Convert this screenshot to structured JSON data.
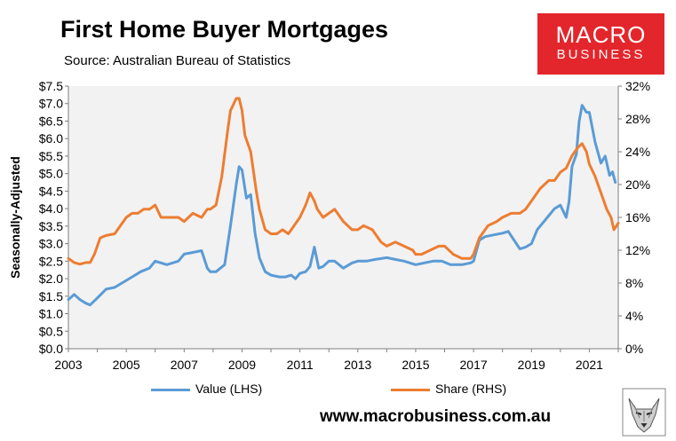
{
  "header": {
    "title": "First Home Buyer Mortgages",
    "subtitle": "Source: Australian Bureau of Statistics"
  },
  "logo": {
    "line1": "MACRO",
    "line2": "BUSINESS"
  },
  "footer": {
    "website": "www.macrobusiness.com.au"
  },
  "colors": {
    "value": "#5b9bd5",
    "share": "#ed7d31",
    "plot_bg": "#f2f2f2",
    "brand": "#e3262c"
  },
  "chart_data": {
    "type": "line",
    "title": "First Home Buyer Mortgages",
    "subtitle": "Source: Australian Bureau of Statistics",
    "ylabel": "Seasonally-Adjusted",
    "ylim": [
      0,
      7.5
    ],
    "y2lim": [
      0,
      32
    ],
    "xlim": [
      2003,
      2022
    ],
    "y_ticks": [
      "$0.0",
      "$0.5",
      "$1.0",
      "$1.5",
      "$2.0",
      "$2.5",
      "$3.0",
      "$3.5",
      "$4.0",
      "$4.5",
      "$5.0",
      "$5.5",
      "$6.0",
      "$6.5",
      "$7.0",
      "$7.5"
    ],
    "y2_ticks": [
      "0%",
      "4%",
      "8%",
      "12%",
      "16%",
      "20%",
      "24%",
      "28%",
      "32%"
    ],
    "x_ticks": [
      "2003",
      "2005",
      "2007",
      "2009",
      "2011",
      "2013",
      "2015",
      "2017",
      "2019",
      "2021"
    ],
    "grid": false,
    "legend": "bottom",
    "series": [
      {
        "name": "Value (LHS)",
        "axis": "left",
        "x": [
          2003.0,
          2003.2,
          2003.4,
          2003.6,
          2003.75,
          2004.0,
          2004.3,
          2004.6,
          2004.9,
          2005.2,
          2005.5,
          2005.8,
          2006.0,
          2006.2,
          2006.4,
          2006.8,
          2007.0,
          2007.3,
          2007.6,
          2007.8,
          2007.9,
          2008.1,
          2008.4,
          2008.6,
          2008.8,
          2008.9,
          2009.0,
          2009.15,
          2009.3,
          2009.45,
          2009.6,
          2009.8,
          2010.0,
          2010.3,
          2010.5,
          2010.7,
          2010.85,
          2011.0,
          2011.2,
          2011.35,
          2011.5,
          2011.65,
          2011.8,
          2012.0,
          2012.2,
          2012.5,
          2012.8,
          2013.0,
          2013.3,
          2013.6,
          2014.0,
          2014.3,
          2014.6,
          2015.0,
          2015.3,
          2015.6,
          2015.9,
          2016.2,
          2016.6,
          2016.9,
          2017.0,
          2017.2,
          2017.4,
          2017.7,
          2018.0,
          2018.2,
          2018.4,
          2018.6,
          2018.8,
          2019.0,
          2019.2,
          2019.4,
          2019.6,
          2019.8,
          2020.0,
          2020.2,
          2020.3,
          2020.4,
          2020.55,
          2020.65,
          2020.75,
          2020.9,
          2021.0,
          2021.2,
          2021.4,
          2021.55,
          2021.7,
          2021.8,
          2021.9
        ],
        "values": [
          1.4,
          1.55,
          1.4,
          1.3,
          1.25,
          1.45,
          1.7,
          1.75,
          1.9,
          2.05,
          2.2,
          2.3,
          2.5,
          2.45,
          2.4,
          2.5,
          2.7,
          2.75,
          2.8,
          2.3,
          2.2,
          2.2,
          2.4,
          3.5,
          4.7,
          5.2,
          5.1,
          4.3,
          4.4,
          3.3,
          2.6,
          2.2,
          2.1,
          2.05,
          2.05,
          2.1,
          2.0,
          2.15,
          2.2,
          2.35,
          2.9,
          2.3,
          2.35,
          2.5,
          2.5,
          2.3,
          2.45,
          2.5,
          2.5,
          2.55,
          2.6,
          2.55,
          2.5,
          2.4,
          2.45,
          2.5,
          2.5,
          2.4,
          2.4,
          2.45,
          2.5,
          3.1,
          3.2,
          3.25,
          3.3,
          3.35,
          3.1,
          2.85,
          2.9,
          3.0,
          3.4,
          3.6,
          3.8,
          4.0,
          4.1,
          3.75,
          4.2,
          5.2,
          5.55,
          6.5,
          6.95,
          6.75,
          6.75,
          5.9,
          5.3,
          5.5,
          4.95,
          5.05,
          4.75
        ]
      },
      {
        "name": "Share (RHS)",
        "axis": "right",
        "x": [
          2003.0,
          2003.2,
          2003.4,
          2003.6,
          2003.75,
          2003.9,
          2004.1,
          2004.3,
          2004.6,
          2004.8,
          2005.0,
          2005.2,
          2005.4,
          2005.6,
          2005.8,
          2006.0,
          2006.2,
          2006.4,
          2006.8,
          2007.0,
          2007.3,
          2007.6,
          2007.8,
          2007.9,
          2008.1,
          2008.3,
          2008.5,
          2008.6,
          2008.8,
          2008.9,
          2009.0,
          2009.1,
          2009.3,
          2009.5,
          2009.6,
          2009.8,
          2010.0,
          2010.2,
          2010.4,
          2010.6,
          2010.8,
          2011.0,
          2011.2,
          2011.35,
          2011.5,
          2011.6,
          2011.8,
          2012.0,
          2012.2,
          2012.5,
          2012.8,
          2013.0,
          2013.2,
          2013.5,
          2013.8,
          2014.0,
          2014.3,
          2014.6,
          2014.9,
          2015.0,
          2015.2,
          2015.5,
          2015.8,
          2016.0,
          2016.3,
          2016.6,
          2016.9,
          2017.0,
          2017.2,
          2017.5,
          2017.8,
          2018.0,
          2018.3,
          2018.6,
          2018.8,
          2019.0,
          2019.3,
          2019.6,
          2019.8,
          2020.0,
          2020.2,
          2020.4,
          2020.6,
          2020.75,
          2020.9,
          2021.0,
          2021.2,
          2021.4,
          2021.6,
          2021.75,
          2021.85,
          2022.0
        ],
        "values": [
          11.0,
          10.5,
          10.3,
          10.5,
          10.5,
          11.5,
          13.5,
          13.8,
          14.0,
          15.0,
          16.0,
          16.5,
          16.5,
          17.0,
          17.0,
          17.5,
          16.0,
          16.0,
          16.0,
          15.5,
          16.5,
          16.0,
          17.0,
          17.0,
          17.5,
          21.0,
          26.5,
          29.0,
          30.5,
          30.5,
          29.0,
          26.0,
          24.0,
          19.0,
          17.0,
          14.5,
          14.0,
          14.0,
          14.5,
          14.0,
          15.0,
          16.0,
          17.5,
          19.0,
          18.0,
          17.0,
          16.0,
          16.5,
          17.0,
          15.5,
          14.5,
          14.5,
          15.0,
          14.5,
          13.0,
          12.5,
          13.0,
          12.5,
          12.0,
          11.5,
          11.5,
          12.0,
          12.5,
          12.5,
          11.5,
          11.0,
          11.0,
          11.5,
          13.5,
          15.0,
          15.5,
          16.0,
          16.5,
          16.5,
          17.0,
          18.0,
          19.5,
          20.5,
          20.5,
          21.5,
          22.0,
          23.5,
          24.5,
          25.0,
          24.0,
          22.5,
          21.0,
          19.0,
          17.0,
          16.0,
          14.5,
          15.3
        ]
      }
    ]
  }
}
